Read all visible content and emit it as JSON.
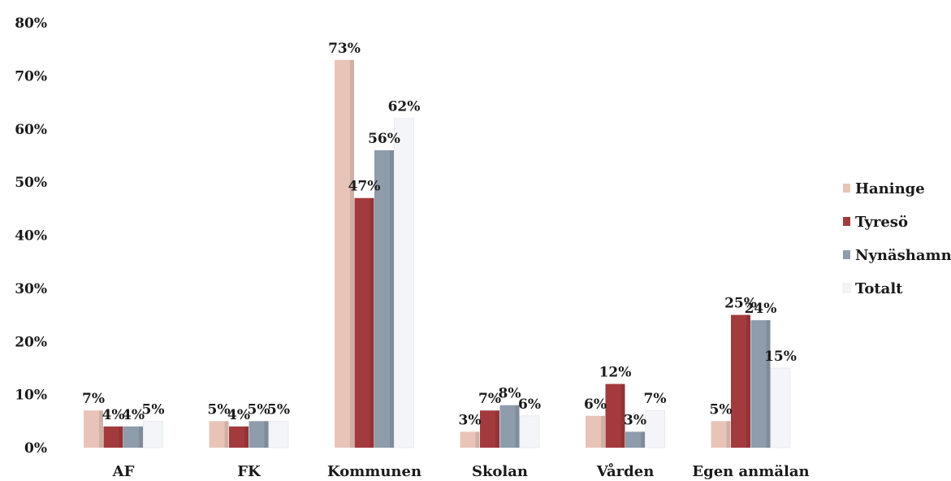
{
  "chart_data": {
    "type": "bar",
    "categories": [
      "AF",
      "FK",
      "Kommunen",
      "Skolan",
      "Vården",
      "Egen anmälan"
    ],
    "series": [
      {
        "name": "Haninge",
        "values": [
          7,
          5,
          73,
          3,
          6,
          5
        ],
        "color": "#e8c4b8"
      },
      {
        "name": "Tyresö",
        "values": [
          4,
          4,
          47,
          7,
          12,
          25
        ],
        "color": "#a33a3e"
      },
      {
        "name": "Nynäshamn",
        "values": [
          4,
          5,
          56,
          8,
          3,
          24
        ],
        "color": "#8e9cac"
      },
      {
        "name": "Totalt",
        "values": [
          5,
          5,
          62,
          6,
          7,
          15
        ],
        "color": "#f4f5f8"
      }
    ],
    "ylim": [
      0,
      80
    ],
    "yticks": [
      0,
      10,
      20,
      30,
      40,
      50,
      60,
      70,
      80
    ],
    "tick_suffix": "%",
    "grid": false,
    "legend_position": "right"
  }
}
